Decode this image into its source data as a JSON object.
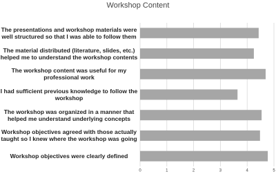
{
  "chart_data": {
    "type": "barh",
    "title": "Workshop Content",
    "categories": [
      "The presentations and workshop materials were well structured so that I was able to follow them",
      "The material distributed (literature, slides, etc.) helped me to understand the workshop contents",
      "The workshop content was useful for my professional work",
      "I had sufficient previous knowledge to follow the workshop",
      "The workshop was organized in a manner that helped me understand underlying concepts",
      "Workshop objectives agreed with those actually taught so I knew where the workshop was going",
      "Workshop objectives were clearly defined"
    ],
    "values": [
      4.43,
      4.25,
      4.69,
      3.64,
      4.54,
      4.48,
      4.77
    ],
    "color": "#a6a6a6",
    "xlim": [
      0,
      5
    ],
    "xticks": [
      0,
      1,
      2,
      3,
      4,
      5
    ],
    "grid": true
  }
}
